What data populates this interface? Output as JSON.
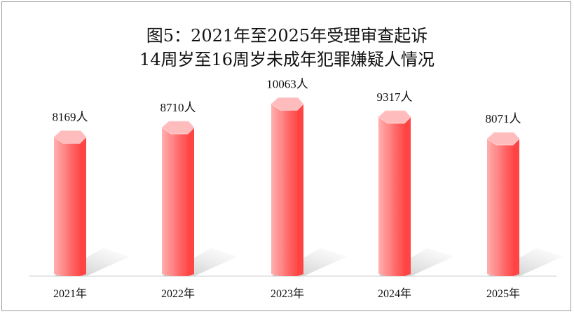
{
  "chart_data": {
    "type": "bar",
    "title_line1": "图5：2021年至2025年受理审查起诉",
    "title_line2": "14周岁至16周岁未成年犯罪嫌疑人情况",
    "categories": [
      "2021年",
      "2022年",
      "2023年",
      "2024年",
      "2025年"
    ],
    "values": [
      8169,
      8710,
      10063,
      9317,
      8071
    ],
    "value_labels": [
      "8169人",
      "8710人",
      "10063人",
      "9317人",
      "8071人"
    ],
    "xlabel": "",
    "ylabel": "",
    "ylim": [
      0,
      11000
    ],
    "grid": false,
    "legend": "none",
    "colors": {
      "bar_top": "#ffb7b7",
      "bar_left": "#ff8a8a",
      "bar_mid": "#ff6f6f",
      "bar_right": "#ff4848",
      "shadow": "#bdbdbd",
      "axis": "#c8c8c8"
    }
  }
}
